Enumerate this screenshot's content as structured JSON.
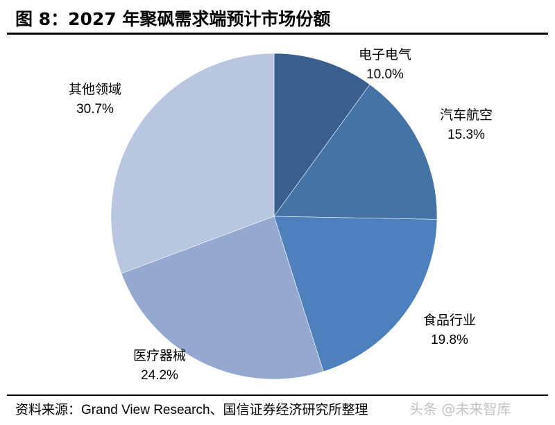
{
  "header": {
    "title": "图 8：2027 年聚砜需求端预计市场份额"
  },
  "footer": {
    "source": "资料来源：Grand View Research、国信证券经济研究所整理",
    "watermark": "头条 @未来智库"
  },
  "chart_data": {
    "type": "pie",
    "unit": "%",
    "slices": [
      {
        "label": "电子电气",
        "value": 10.0,
        "display": "10.0%",
        "color": "#3a5f8f"
      },
      {
        "label": "汽车航空",
        "value": 15.3,
        "display": "15.3%",
        "color": "#4473a6"
      },
      {
        "label": "食品行业",
        "value": 19.8,
        "display": "19.8%",
        "color": "#4e80bd"
      },
      {
        "label": "医疗器械",
        "value": 24.2,
        "display": "24.2%",
        "color": "#95a8cf"
      },
      {
        "label": "其他领域",
        "value": 30.7,
        "display": "30.7%",
        "color": "#b9c6e0"
      }
    ],
    "start": "12 o'clock",
    "direction": "clockwise",
    "legend": "none"
  }
}
